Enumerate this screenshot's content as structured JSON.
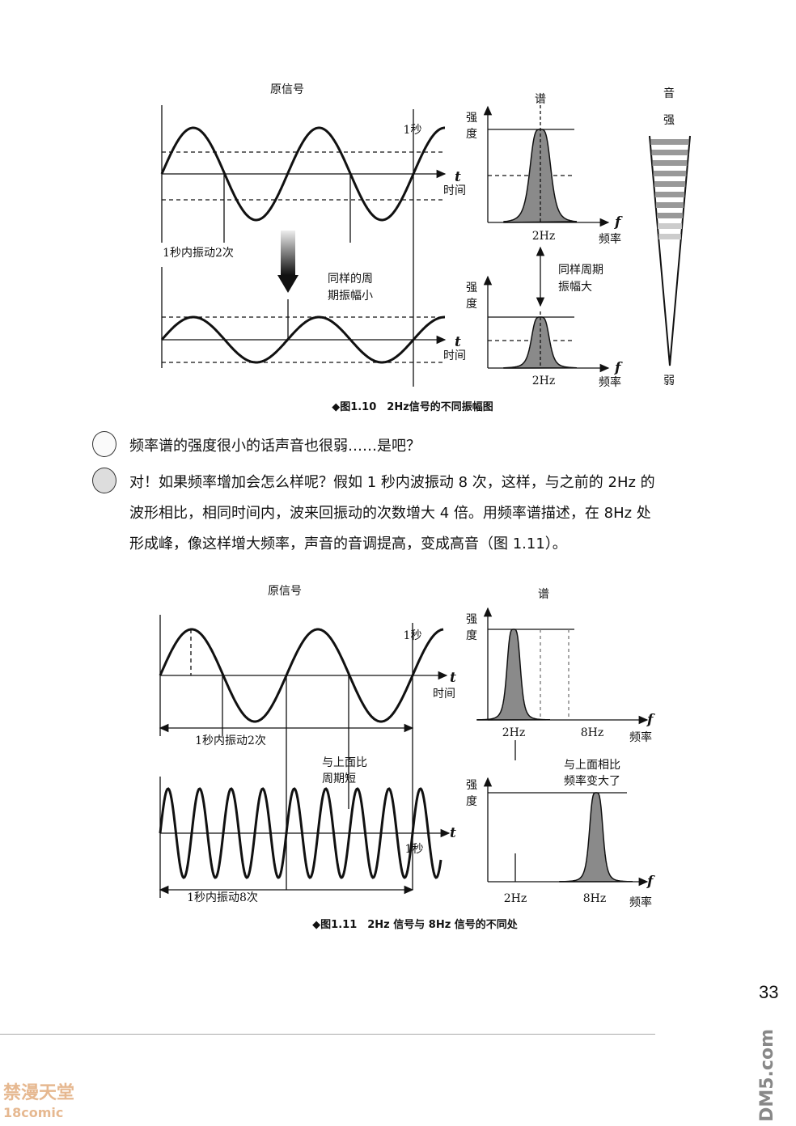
{
  "figure_1_10": {
    "original_signal": "原信号",
    "one_second": "1秒",
    "t": "t",
    "time": "时间",
    "vibrate_twice": "1秒内振动2次",
    "same_period_small_amp": [
      "同样的周",
      "期振幅小"
    ],
    "spectrum": "谱",
    "intensity": [
      "强",
      "度"
    ],
    "freq_tick": "2Hz",
    "f": "f",
    "frequency": "频率",
    "same_period_large_amp": [
      "同样周期",
      "振幅大"
    ],
    "volume": "音",
    "strong": "强",
    "weak": "弱",
    "caption": "◆图1.10　2Hz信号的不同振幅图"
  },
  "dialogue": [
    {
      "speaker_icon": "girl-avatar-icon",
      "lines": [
        "频率谱的强度很小的话声音也很弱……是吧？"
      ]
    },
    {
      "speaker_icon": "teacher-avatar-icon",
      "lines": [
        "对！如果频率增加会怎么样呢？假如 1 秒内波振动 8 次，这样，与之前的 2Hz 的",
        "波形相比，相同时间内，波来回振动的次数增大 4 倍。用频率谱描述，在 8Hz 处",
        "形成峰，像这样增大频率，声音的音调提高，变成高音（图 1.11）。"
      ]
    }
  ],
  "figure_1_11": {
    "original_signal": "原信号",
    "spectrum": "谱",
    "one_second": "1秒",
    "t": "t",
    "time": "时间",
    "vibrate_twice": "1秒内振动2次",
    "vibrate_eight": "1秒内振动8次",
    "shorter_period": [
      "与上面比",
      "周期短"
    ],
    "intensity": [
      "强",
      "度"
    ],
    "tick_2hz": "2Hz",
    "tick_8hz": "8Hz",
    "f": "f",
    "frequency": "频率",
    "freq_higher": [
      "与上面相比",
      "频率变大了"
    ],
    "caption": "◆图1.11　2Hz 信号与 8Hz 信号的不同处"
  },
  "page_number": "33",
  "watermarks": {
    "left": [
      "禁漫天堂",
      "18comic"
    ],
    "right": "DM5.com"
  },
  "colors": {
    "peak_fill": "#8a8a8a",
    "ink": "#111111"
  }
}
